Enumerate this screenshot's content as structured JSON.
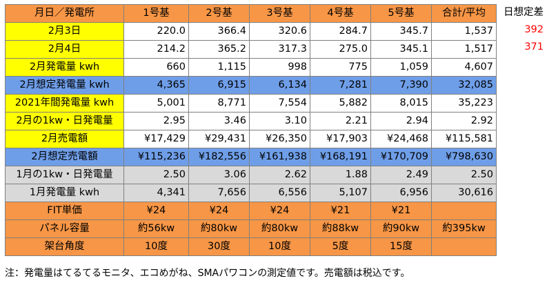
{
  "table": {
    "headers": [
      "月日／発電所",
      "1号基",
      "2号基",
      "3号基",
      "4号基",
      "5号基",
      "合計/平均"
    ],
    "rows": [
      {
        "label": "2月3日",
        "style": "yellow",
        "values": [
          "220.0",
          "366.4",
          "320.6",
          "284.7",
          "345.7",
          "1,537"
        ]
      },
      {
        "label": "2月4日",
        "style": "yellow",
        "values": [
          "214.2",
          "365.2",
          "317.3",
          "275.0",
          "345.1",
          "1,517"
        ]
      },
      {
        "label": "2月発電量 kwh",
        "style": "yellow",
        "values": [
          "660",
          "1,115",
          "998",
          "775",
          "1,059",
          "4,607"
        ]
      },
      {
        "label": "2月想定発電量 kwh",
        "style": "blue",
        "values": [
          "4,365",
          "6,915",
          "6,134",
          "7,281",
          "7,390",
          "32,085"
        ]
      },
      {
        "label": "2021年間発電量 kwh",
        "style": "yellow",
        "values": [
          "5,001",
          "8,771",
          "7,554",
          "5,882",
          "8,015",
          "35,223"
        ]
      },
      {
        "label": "2月の1kw・日発電量",
        "style": "yellow",
        "values": [
          "2.95",
          "3.46",
          "3.10",
          "2.21",
          "2.94",
          "2.92"
        ]
      },
      {
        "label": "2月売電額",
        "style": "yellow",
        "values": [
          "¥17,429",
          "¥29,431",
          "¥26,350",
          "¥17,903",
          "¥24,468",
          "¥115,581"
        ]
      },
      {
        "label": "2月想定売電額",
        "style": "blue",
        "values": [
          "¥115,236",
          "¥182,556",
          "¥161,938",
          "¥168,191",
          "¥170,709",
          "¥798,630"
        ]
      },
      {
        "label": "1月の1kw・日発電量",
        "style": "gray",
        "values": [
          "2.50",
          "3.06",
          "2.62",
          "1.88",
          "2.49",
          "2.50"
        ]
      },
      {
        "label": "1月発電量 kwh",
        "style": "gray",
        "values": [
          "4,341",
          "7,656",
          "6,556",
          "5,107",
          "6,956",
          "30,616"
        ]
      },
      {
        "label": "FIT単価",
        "style": "orange",
        "values": [
          "¥24",
          "¥24",
          "¥24",
          "¥21",
          "¥21",
          ""
        ]
      },
      {
        "label": "パネル容量",
        "style": "orange",
        "values": [
          "約56kw",
          "約80kw",
          "約80kw",
          "約88kw",
          "約90kw",
          "約395kw"
        ]
      },
      {
        "label": "架台角度",
        "style": "orange",
        "values": [
          "10度",
          "30度",
          "10度",
          "5度",
          "15度",
          ""
        ]
      }
    ]
  },
  "side": {
    "header": "日想定差",
    "values": [
      "392",
      "371"
    ]
  },
  "note": "注：発電量はてるてるモニタ、エコめがね、SMAパワコンの測定値です。売電額は税込です。",
  "colors": {
    "orange": "#f79646",
    "yellow": "#ffff00",
    "blue": "#6f9ee8",
    "gray": "#d9d9d9",
    "diff_red": "#ff0000"
  }
}
